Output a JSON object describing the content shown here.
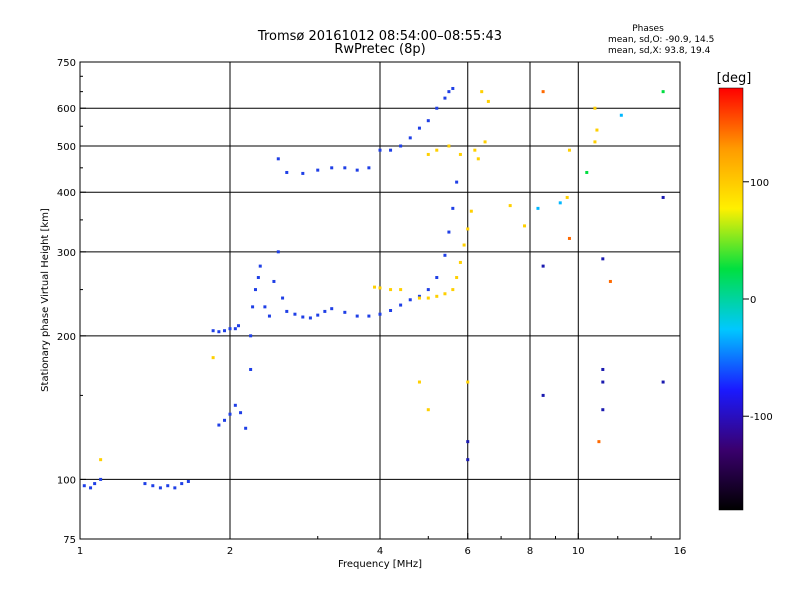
{
  "chart_data": {
    "type": "scatter",
    "title": "Tromsø 20161012 08:54:00–08:55:43",
    "subtitle": "RwPretec (8p)",
    "xlabel": "Frequency [MHz]",
    "ylabel": "Stationary phase Virtual Height [km]",
    "x_scale": "log",
    "y_scale": "log",
    "xlim": [
      1,
      16
    ],
    "ylim": [
      75,
      750
    ],
    "x_ticks": [
      1,
      2,
      4,
      6,
      8,
      10,
      16
    ],
    "y_ticks": [
      75,
      100,
      200,
      300,
      400,
      500,
      600,
      750
    ],
    "x_gridlines": [
      2,
      4,
      6,
      8,
      10
    ],
    "y_gridlines": [
      100,
      200,
      300,
      400,
      500,
      600
    ],
    "grid": true,
    "phase_stats": {
      "heading": "Phases",
      "line_o": "mean, sd,O: -90.9, 14.5",
      "line_x": "mean, sd,X:  93.8, 19.4"
    },
    "colorbar": {
      "label": "[deg]",
      "range": [
        -180,
        180
      ],
      "ticks": [
        100,
        0,
        -100
      ],
      "colors": [
        "#000000",
        "#3a006e",
        "#1a1aff",
        "#00c8ff",
        "#00e040",
        "#fff000",
        "#ff9a00",
        "#ff0000"
      ],
      "position": "right"
    },
    "series": [
      {
        "mode": "O",
        "color": "#1f3fe6",
        "phase": -90,
        "points": [
          [
            1.02,
            97
          ],
          [
            1.05,
            96
          ],
          [
            1.07,
            98
          ],
          [
            1.1,
            100
          ],
          [
            1.35,
            98
          ],
          [
            1.4,
            97
          ],
          [
            1.45,
            96
          ],
          [
            1.5,
            97
          ],
          [
            1.55,
            96
          ],
          [
            1.6,
            98
          ],
          [
            1.65,
            99
          ],
          [
            1.85,
            205
          ],
          [
            1.9,
            204
          ],
          [
            1.95,
            205
          ],
          [
            2.0,
            207
          ],
          [
            2.05,
            207
          ],
          [
            2.08,
            210
          ],
          [
            1.9,
            130
          ],
          [
            1.95,
            133
          ],
          [
            2.0,
            137
          ],
          [
            2.05,
            143
          ],
          [
            2.1,
            138
          ],
          [
            2.15,
            128
          ],
          [
            2.2,
            170
          ],
          [
            2.2,
            200
          ],
          [
            2.22,
            230
          ],
          [
            2.25,
            250
          ],
          [
            2.28,
            265
          ],
          [
            2.3,
            280
          ],
          [
            2.35,
            230
          ],
          [
            2.4,
            220
          ],
          [
            2.45,
            260
          ],
          [
            2.5,
            300
          ],
          [
            2.55,
            240
          ],
          [
            2.6,
            225
          ],
          [
            2.7,
            222
          ],
          [
            2.8,
            219
          ],
          [
            2.9,
            218
          ],
          [
            3.0,
            221
          ],
          [
            3.1,
            225
          ],
          [
            3.2,
            228
          ],
          [
            3.4,
            224
          ],
          [
            3.6,
            220
          ],
          [
            3.8,
            220
          ],
          [
            4.0,
            222
          ],
          [
            4.2,
            226
          ],
          [
            4.4,
            232
          ],
          [
            4.6,
            238
          ],
          [
            4.8,
            242
          ],
          [
            5.0,
            250
          ],
          [
            5.2,
            265
          ],
          [
            5.4,
            295
          ],
          [
            5.5,
            330
          ],
          [
            5.6,
            370
          ],
          [
            5.7,
            420
          ],
          [
            2.5,
            470
          ],
          [
            2.6,
            440
          ],
          [
            2.8,
            438
          ],
          [
            3.0,
            445
          ],
          [
            3.2,
            450
          ],
          [
            3.4,
            450
          ],
          [
            3.6,
            445
          ],
          [
            3.8,
            450
          ],
          [
            4.0,
            490
          ],
          [
            4.2,
            490
          ],
          [
            4.4,
            500
          ],
          [
            4.6,
            520
          ],
          [
            4.8,
            545
          ],
          [
            5.0,
            565
          ],
          [
            5.2,
            600
          ],
          [
            5.4,
            630
          ],
          [
            5.5,
            650
          ],
          [
            5.6,
            660
          ]
        ]
      },
      {
        "mode": "X",
        "color": "#ffd000",
        "phase": 100,
        "points": [
          [
            4.8,
            240
          ],
          [
            5.0,
            240
          ],
          [
            5.2,
            242
          ],
          [
            5.4,
            245
          ],
          [
            5.6,
            250
          ],
          [
            5.7,
            265
          ],
          [
            5.8,
            285
          ],
          [
            5.9,
            310
          ],
          [
            6.0,
            335
          ],
          [
            6.1,
            365
          ],
          [
            3.9,
            253
          ],
          [
            4.0,
            252
          ],
          [
            4.2,
            250
          ],
          [
            4.4,
            250
          ],
          [
            5.0,
            480
          ],
          [
            5.2,
            490
          ],
          [
            5.5,
            500
          ],
          [
            5.8,
            480
          ],
          [
            6.2,
            490
          ],
          [
            6.3,
            470
          ],
          [
            6.5,
            510
          ],
          [
            6.6,
            620
          ],
          [
            6.4,
            650
          ],
          [
            7.3,
            375
          ],
          [
            7.8,
            340
          ],
          [
            9.5,
            390
          ],
          [
            9.6,
            490
          ],
          [
            10.8,
            510
          ],
          [
            10.9,
            540
          ],
          [
            10.8,
            600
          ],
          [
            1.1,
            110
          ],
          [
            1.85,
            180
          ],
          [
            4.8,
            160
          ],
          [
            5.0,
            140
          ],
          [
            6.0,
            160
          ]
        ]
      },
      {
        "mode": "scattered",
        "color": "#ff6a00",
        "phase": 140,
        "points": [
          [
            8.5,
            650
          ],
          [
            9.6,
            320
          ],
          [
            11.0,
            120
          ],
          [
            11.6,
            260
          ]
        ]
      },
      {
        "mode": "scattered",
        "color": "#00b7ff",
        "phase": -40,
        "points": [
          [
            8.3,
            370
          ],
          [
            9.2,
            380
          ],
          [
            12.2,
            580
          ]
        ]
      },
      {
        "mode": "scattered",
        "color": "#00dd40",
        "phase": 30,
        "points": [
          [
            14.8,
            650
          ],
          [
            10.4,
            440
          ]
        ]
      },
      {
        "mode": "scattered",
        "color": "#1a1ab0",
        "phase": -115,
        "points": [
          [
            8.5,
            280
          ],
          [
            8.5,
            150
          ],
          [
            11.2,
            290
          ],
          [
            11.2,
            170
          ],
          [
            11.2,
            160
          ],
          [
            11.2,
            140
          ],
          [
            14.8,
            390
          ],
          [
            14.8,
            160
          ],
          [
            6.0,
            110
          ],
          [
            6.0,
            120
          ]
        ]
      }
    ]
  }
}
